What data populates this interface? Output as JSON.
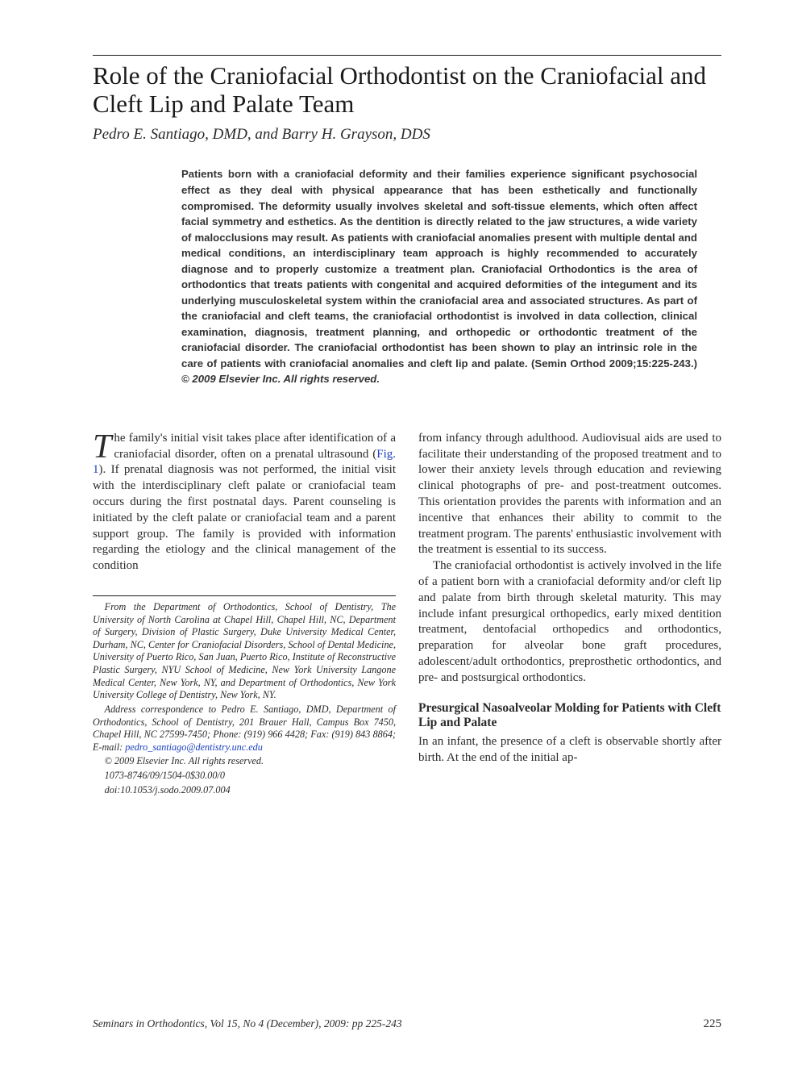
{
  "title": "Role of the Craniofacial Orthodontist on the Craniofacial and Cleft Lip and Palate Team",
  "authors": "Pedro E. Santiago, DMD, and Barry H. Grayson, DDS",
  "abstract": {
    "body": "Patients born with a craniofacial deformity and their families experience significant psychosocial effect as they deal with physical appearance that has been esthetically and functionally compromised. The deformity usually involves skeletal and soft-tissue elements, which often affect facial symmetry and esthetics. As the dentition is directly related to the jaw structures, a wide variety of malocclusions may result. As patients with craniofacial anomalies present with multiple dental and medical conditions, an interdisciplinary team approach is highly recommended to accurately diagnose and to properly customize a treatment plan. Craniofacial Orthodontics is the area of orthodontics that treats patients with congenital and acquired deformities of the integument and its underlying musculoskeletal system within the craniofacial area and associated structures. As part of the craniofacial and cleft teams, the craniofacial orthodontist is involved in data collection, clinical examination, diagnosis, treatment planning, and orthopedic or orthodontic treatment of the craniofacial disorder. The craniofacial orthodontist has been shown to play an intrinsic role in the care of patients with craniofacial anomalies and cleft lip and palate. (Semin Orthod 2009;15:225-243.) ",
    "rights": "© 2009 Elsevier Inc. All rights reserved."
  },
  "col_left": {
    "drop": "T",
    "p1_a": "he family's initial visit takes place after identification of a craniofacial disorder, often on a prenatal ultrasound (",
    "fig_ref": "Fig. 1",
    "p1_b": "). If prenatal diagnosis was not performed, the initial visit with the interdisciplinary cleft palate or craniofacial team occurs during the first postnatal days. Parent counseling is initiated by the cleft palate or craniofacial team and a parent support group. The family is provided with information regarding the etiology and the clinical management of the condition"
  },
  "affiliations": {
    "p1": "From the Department of Orthodontics, School of Dentistry, The University of North Carolina at Chapel Hill, Chapel Hill, NC, Department of Surgery, Division of Plastic Surgery, Duke University Medical Center, Durham, NC, Center for Craniofacial Disorders, School of Dental Medicine, University of Puerto Rico, San Juan, Puerto Rico, Institute of Reconstructive Plastic Surgery, NYU School of Medicine, New York University Langone Medical Center, New York, NY, and Department of Orthodontics, New York University College of Dentistry, New York, NY.",
    "p2_a": "Address correspondence to Pedro E. Santiago, DMD, Department of Orthodontics, School of Dentistry, 201 Brauer Hall, Campus Box 7450, Chapel Hill, NC 27599-7450; Phone: (919) 966 4428; Fax: (919) 843 8864; E-mail: ",
    "email": "pedro_santiago@dentistry.unc.edu",
    "p3": "© 2009 Elsevier Inc. All rights reserved.",
    "p4": "1073-8746/09/1504-0$30.00/0",
    "p5": "doi:10.1053/j.sodo.2009.07.004"
  },
  "col_right": {
    "p1": "from infancy through adulthood. Audiovisual aids are used to facilitate their understanding of the proposed treatment and to lower their anxiety levels through education and reviewing clinical photographs of pre- and post-treatment outcomes. This orientation provides the parents with information and an incentive that enhances their ability to commit to the treatment program. The parents' enthusiastic involvement with the treatment is essential to its success.",
    "p2": "The craniofacial orthodontist is actively involved in the life of a patient born with a craniofacial deformity and/or cleft lip and palate from birth through skeletal maturity. This may include infant presurgical orthopedics, early mixed dentition treatment, dentofacial orthopedics and orthodontics, preparation for alveolar bone graft procedures, adolescent/adult orthodontics, preprosthetic orthodontics, and pre- and postsurgical orthodontics.",
    "section_head": "Presurgical Nasoalveolar Molding for Patients with Cleft Lip and Palate",
    "p3": "In an infant, the presence of a cleft is observable shortly after birth. At the end of the initial ap-"
  },
  "footer": {
    "journal": "Seminars in Orthodontics, Vol 15, No 4 (December), 2009: pp 225-243",
    "pagenum": "225"
  },
  "colors": {
    "text": "#2a2a2a",
    "rule": "#1a1a1a",
    "link": "#1a3fbf",
    "background": "#ffffff"
  },
  "typography": {
    "title_fontsize": 31,
    "authors_fontsize": 19,
    "abstract_fontsize": 13.2,
    "body_fontsize": 15,
    "affil_fontsize": 12.2,
    "section_head_fontsize": 15.5,
    "footer_fontsize": 13.5
  }
}
